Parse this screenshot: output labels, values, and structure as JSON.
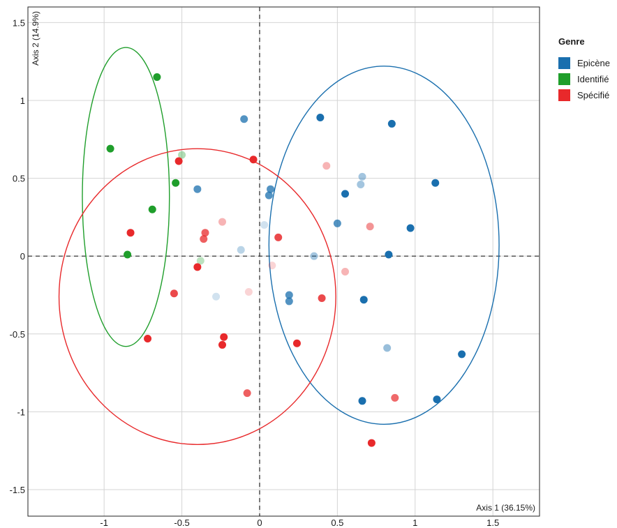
{
  "chart_data": {
    "type": "scatter",
    "xlabel": "Axis 1 (36.15%)",
    "ylabel": "Axis 2 (14.9%)",
    "xlim": [
      -1.49,
      1.8
    ],
    "ylim": [
      -1.67,
      1.6
    ],
    "x_ticks": [
      "-1",
      "-0.5",
      "0",
      "0.5",
      "1",
      "1.5"
    ],
    "x_tick_values": [
      -1,
      -0.5,
      0,
      0.5,
      1,
      1.5
    ],
    "y_ticks": [
      "1.5",
      "1",
      "0.5",
      "0",
      "-0.5",
      "-1",
      "-1.5"
    ],
    "y_tick_values": [
      1.5,
      1,
      0.5,
      0,
      -0.5,
      -1,
      -1.5
    ],
    "grid": true,
    "legend": {
      "title": "Genre",
      "placement": "right"
    },
    "series": [
      {
        "name": "Epicène",
        "color": "#1a6fae",
        "ellipse": {
          "cx": 0.8,
          "cy": 0.07,
          "rx": 0.74,
          "ry": 1.15
        },
        "points": [
          {
            "x": 0.39,
            "y": 0.89,
            "a": 1
          },
          {
            "x": 0.85,
            "y": 0.85,
            "a": 1
          },
          {
            "x": 1.13,
            "y": 0.47,
            "a": 1
          },
          {
            "x": 0.55,
            "y": 0.4,
            "a": 1
          },
          {
            "x": 0.97,
            "y": 0.18,
            "a": 1
          },
          {
            "x": 0.83,
            "y": 0.01,
            "a": 1
          },
          {
            "x": 0.67,
            "y": -0.28,
            "a": 1
          },
          {
            "x": 1.3,
            "y": -0.63,
            "a": 1
          },
          {
            "x": 0.66,
            "y": -0.93,
            "a": 1
          },
          {
            "x": 1.14,
            "y": -0.92,
            "a": 1
          },
          {
            "x": -0.1,
            "y": 0.88,
            "a": 0.75
          },
          {
            "x": 0.07,
            "y": 0.43,
            "a": 0.75
          },
          {
            "x": 0.06,
            "y": 0.39,
            "a": 0.75
          },
          {
            "x": 0.5,
            "y": 0.21,
            "a": 0.75
          },
          {
            "x": 0.19,
            "y": -0.25,
            "a": 0.75
          },
          {
            "x": 0.19,
            "y": -0.29,
            "a": 0.75
          },
          {
            "x": 0.82,
            "y": -0.59,
            "a": 0.45
          },
          {
            "x": -0.4,
            "y": 0.43,
            "a": 0.75
          },
          {
            "x": 0.66,
            "y": 0.51,
            "a": 0.4
          },
          {
            "x": 0.65,
            "y": 0.46,
            "a": 0.4
          },
          {
            "x": 0.35,
            "y": 0.0,
            "a": 0.4
          },
          {
            "x": -0.12,
            "y": 0.04,
            "a": 0.3
          },
          {
            "x": 0.03,
            "y": 0.2,
            "a": 0.2
          },
          {
            "x": -0.28,
            "y": -0.26,
            "a": 0.2
          }
        ]
      },
      {
        "name": "Identifié",
        "color": "#1f9e2b",
        "ellipse": {
          "cx": -0.86,
          "cy": 0.38,
          "rx": 0.28,
          "ry": 0.96
        },
        "points": [
          {
            "x": -0.66,
            "y": 1.15,
            "a": 1
          },
          {
            "x": -0.96,
            "y": 0.69,
            "a": 1
          },
          {
            "x": -0.54,
            "y": 0.47,
            "a": 1
          },
          {
            "x": -0.69,
            "y": 0.3,
            "a": 1
          },
          {
            "x": -0.85,
            "y": 0.01,
            "a": 1
          },
          {
            "x": -0.5,
            "y": 0.65,
            "a": 0.35
          },
          {
            "x": -0.38,
            "y": -0.03,
            "a": 0.3
          }
        ]
      },
      {
        "name": "Spécifié",
        "color": "#e8292b",
        "ellipse": {
          "cx": -0.4,
          "cy": -0.26,
          "rx": 0.89,
          "ry": 0.95
        },
        "points": [
          {
            "x": -0.52,
            "y": 0.61,
            "a": 1
          },
          {
            "x": -0.83,
            "y": 0.15,
            "a": 1
          },
          {
            "x": -0.04,
            "y": 0.62,
            "a": 1
          },
          {
            "x": -0.4,
            "y": -0.07,
            "a": 1
          },
          {
            "x": -0.72,
            "y": -0.53,
            "a": 1
          },
          {
            "x": -0.23,
            "y": -0.52,
            "a": 1
          },
          {
            "x": -0.24,
            "y": -0.57,
            "a": 1
          },
          {
            "x": 0.24,
            "y": -0.56,
            "a": 1
          },
          {
            "x": 0.72,
            "y": -1.2,
            "a": 1
          },
          {
            "x": 0.12,
            "y": 0.12,
            "a": 0.85
          },
          {
            "x": 0.4,
            "y": -0.27,
            "a": 0.85
          },
          {
            "x": -0.55,
            "y": -0.24,
            "a": 0.85
          },
          {
            "x": -0.35,
            "y": 0.15,
            "a": 0.75
          },
          {
            "x": -0.36,
            "y": 0.11,
            "a": 0.75
          },
          {
            "x": -0.08,
            "y": -0.88,
            "a": 0.75
          },
          {
            "x": 0.87,
            "y": -0.91,
            "a": 0.7
          },
          {
            "x": 0.71,
            "y": 0.19,
            "a": 0.5
          },
          {
            "x": 0.43,
            "y": 0.58,
            "a": 0.35
          },
          {
            "x": -0.24,
            "y": 0.22,
            "a": 0.35
          },
          {
            "x": 0.55,
            "y": -0.1,
            "a": 0.35
          },
          {
            "x": 0.08,
            "y": -0.06,
            "a": 0.2
          },
          {
            "x": -0.07,
            "y": -0.23,
            "a": 0.2
          }
        ]
      }
    ]
  }
}
